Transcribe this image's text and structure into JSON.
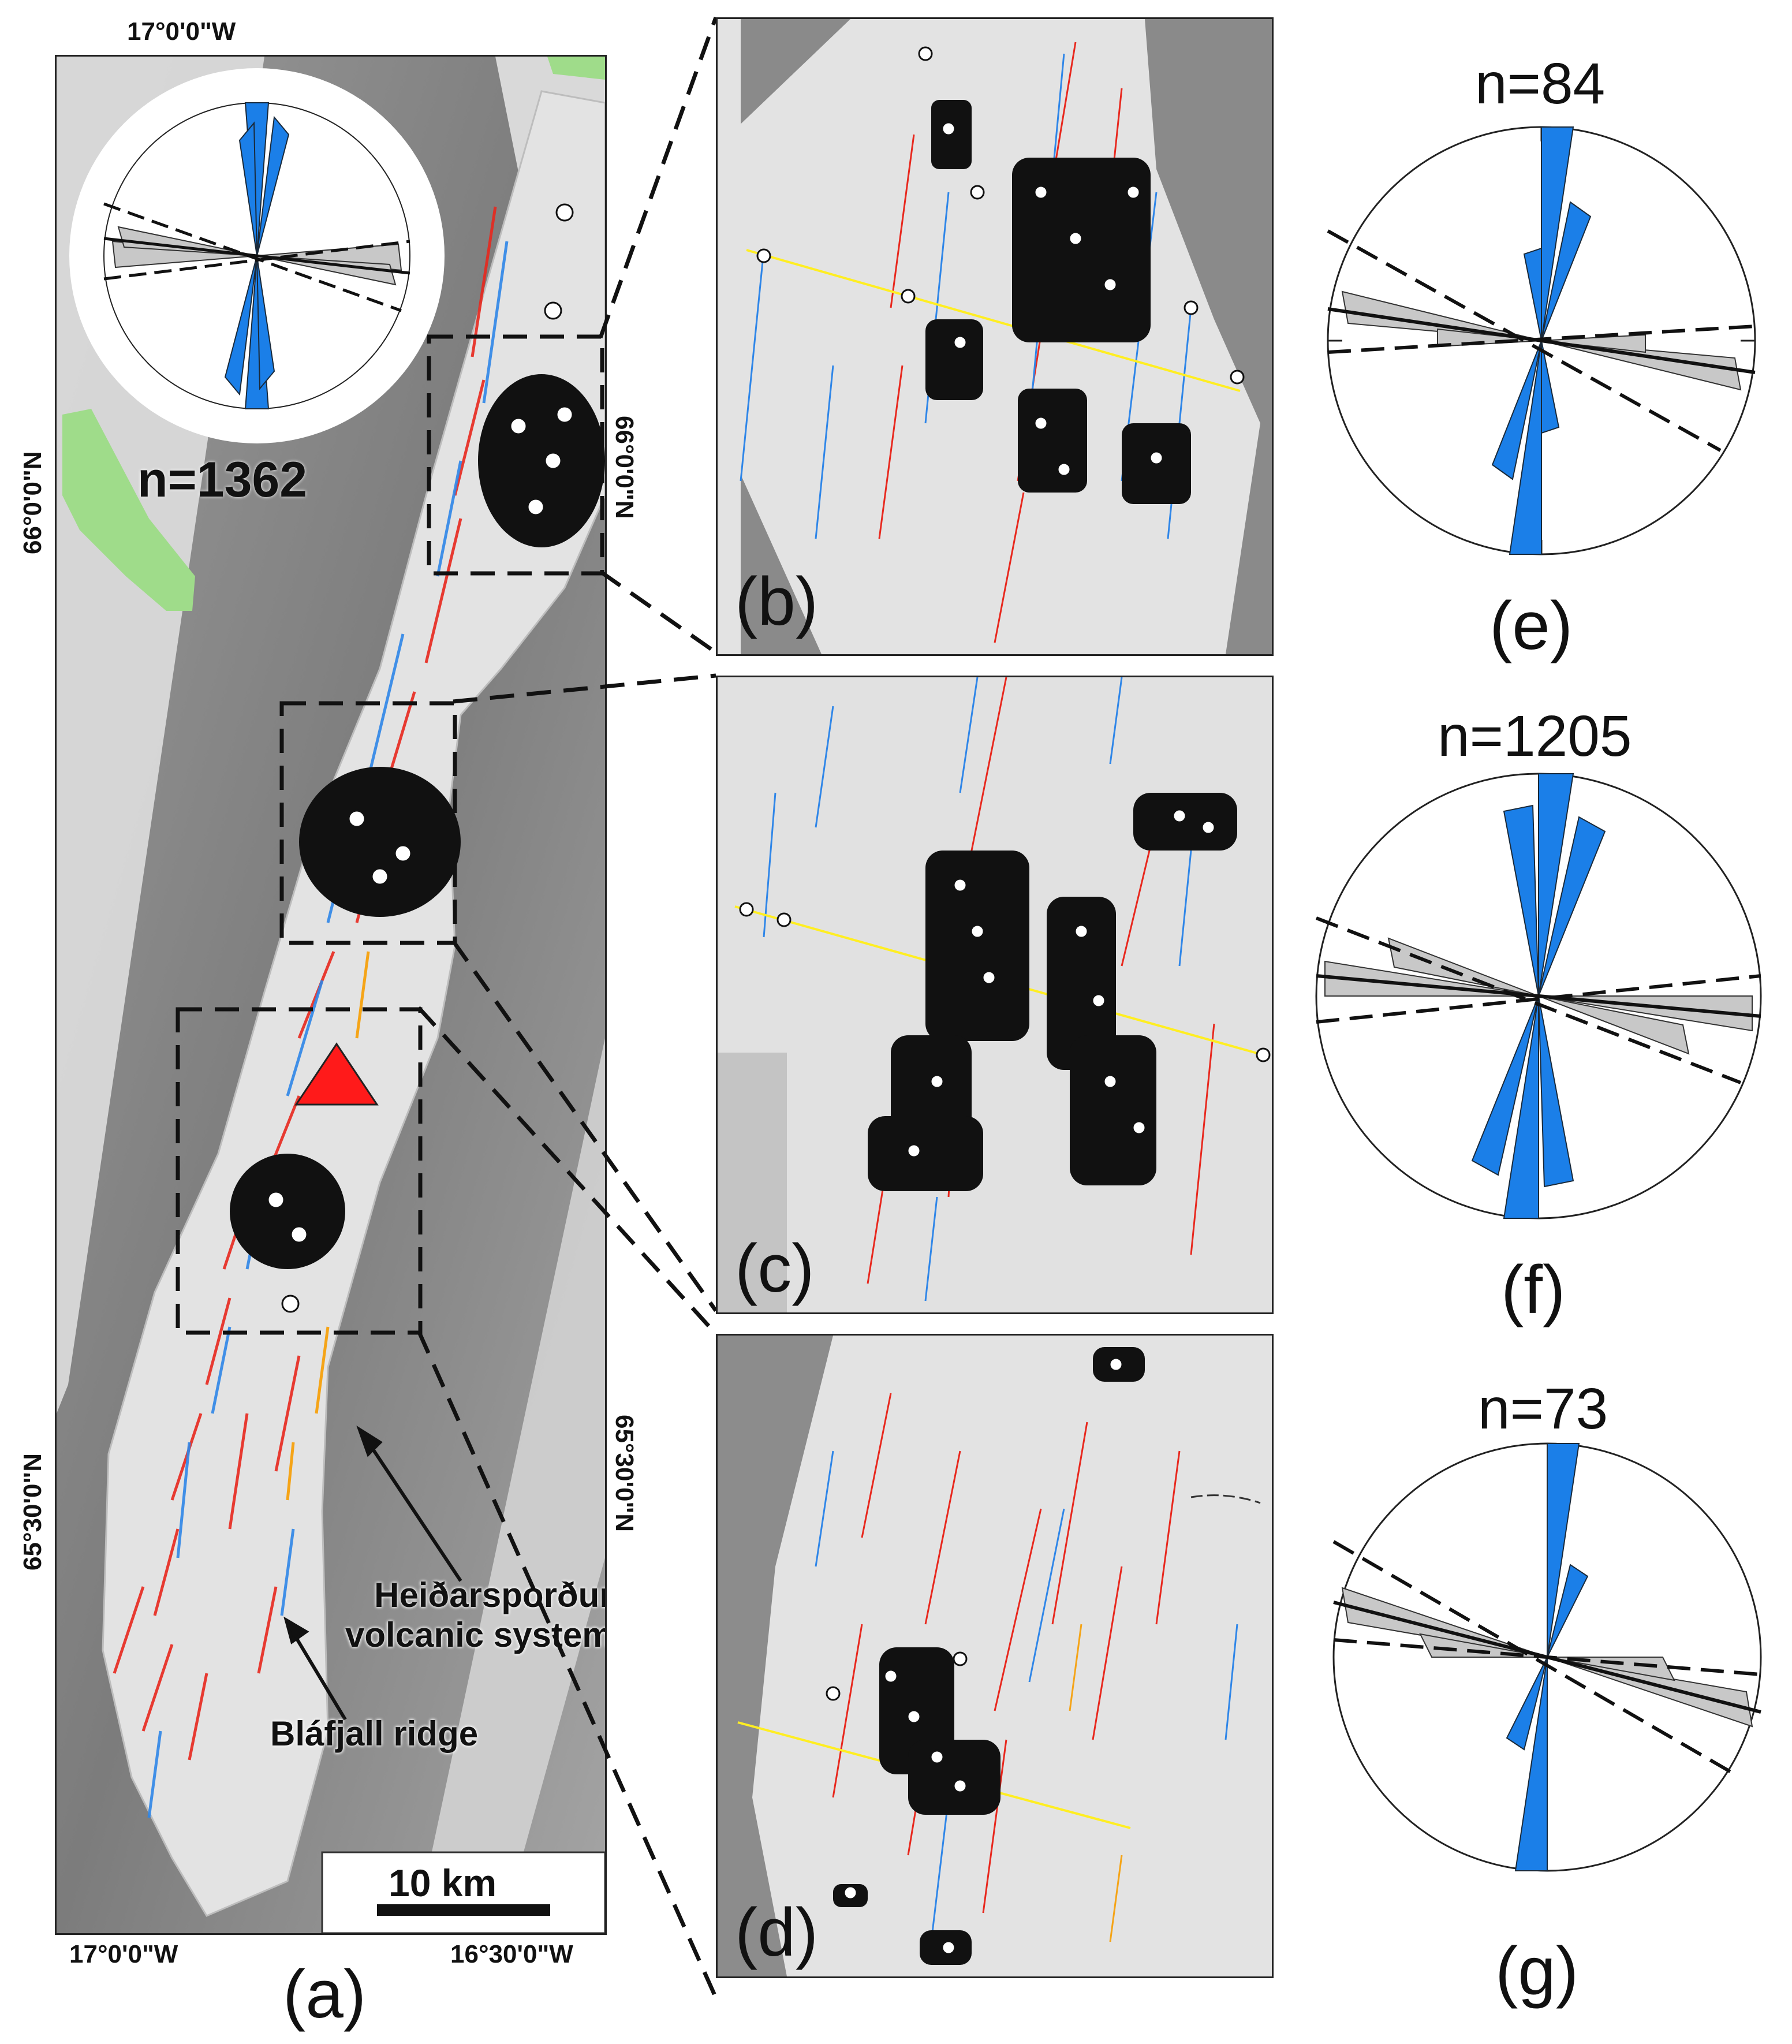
{
  "panel_a": {
    "label": "(a)",
    "top_lon": "17°0'0\"W",
    "bottom_lon_left": "17°0'0\"W",
    "bottom_lon_right": "16°30'0\"W",
    "lat_66_left": "66°0'0\"N",
    "lat_66_right": "66°0'0\"N",
    "lat_6530_left": "65°30'0\"N",
    "lat_6530_right": "65°30'0\"N",
    "rose_count": "n=1362",
    "scale_label": "10 km",
    "annotation_volcanic": "Heiðarsporður\nvolcanic system",
    "annotation_ridge": "Bláfjall ridge",
    "colors": {
      "fault_red": "#e8281e",
      "fault_blue": "#2f86e8",
      "fault_orange": "#f5a417",
      "rose_blue": "#1b7fe8",
      "rose_grey": "#c8c8c8",
      "land_green": "#9fdc8a",
      "marker_yellow": "#ffee22"
    }
  },
  "panel_b": {
    "label": "(b)"
  },
  "panel_c": {
    "label": "(c)"
  },
  "panel_d": {
    "label": "(d)"
  },
  "rose_e": {
    "label": "(e)",
    "count": "n=84"
  },
  "rose_f": {
    "label": "(f)",
    "count": "n=1205"
  },
  "rose_g": {
    "label": "(g)",
    "count": "n=73"
  }
}
